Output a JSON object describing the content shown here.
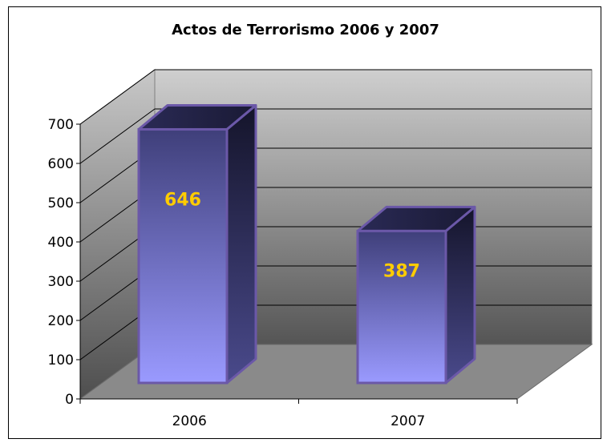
{
  "chart_data": {
    "type": "bar",
    "title": "Actos de Terrorismo 2006 y 2007",
    "categories": [
      "2006",
      "2007"
    ],
    "values": [
      646,
      387
    ],
    "ylim": [
      0,
      700
    ],
    "yticks": [
      0,
      100,
      200,
      300,
      400,
      500,
      600,
      700
    ],
    "grid": true,
    "legend": "none",
    "style": "3d-column",
    "colors": {
      "bar_top": "#3f3f7a",
      "bar_bottom": "#9a9aff",
      "bar_side": "#1e1e3c",
      "bar_outline": "#6b58a8",
      "label": "#ffcc00",
      "wall_top": "#c4c4c4",
      "wall_bottom": "#585858",
      "floor": "#8a8a8a"
    }
  }
}
